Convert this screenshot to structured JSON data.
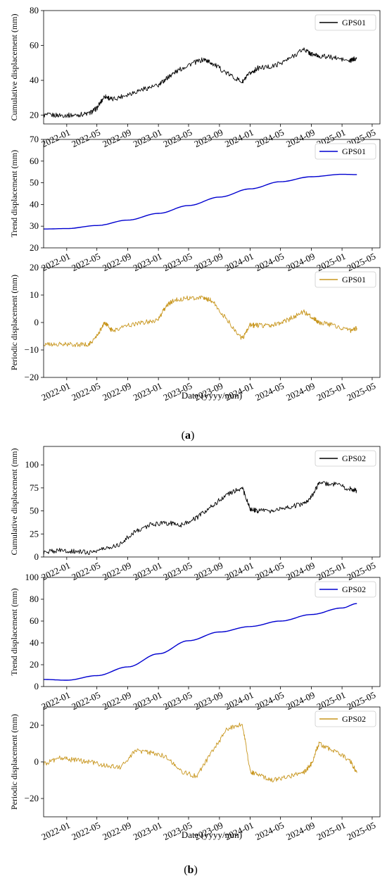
{
  "figure": {
    "captions": [
      "(a)",
      "(b)"
    ],
    "caption_letters": [
      "a",
      "b"
    ]
  },
  "chart_data": [
    {
      "type": "line",
      "ylabel": "Cumulative displacement (mm)",
      "ylim": [
        15,
        80
      ],
      "yticks": [
        20,
        40,
        60,
        80
      ],
      "x_tick_labels": [
        "2022-01",
        "2022-05",
        "2022-09",
        "2023-01",
        "2023-05",
        "2023-09",
        "2024-01",
        "2024-05",
        "2024-09",
        "2025-01",
        "2025-05"
      ],
      "legend": "top-right",
      "color": "#000000",
      "series": [
        {
          "name": "GPS01",
          "x": [
            "2021-10",
            "2021-12",
            "2022-02",
            "2022-04",
            "2022-05",
            "2022-06",
            "2022-07",
            "2022-09",
            "2022-11",
            "2023-01",
            "2023-02",
            "2023-03",
            "2023-05",
            "2023-07",
            "2023-08",
            "2023-10",
            "2023-12",
            "2024-01",
            "2024-02",
            "2024-04",
            "2024-06",
            "2024-08",
            "2024-09",
            "2024-10",
            "2024-12",
            "2025-02",
            "2025-03"
          ],
          "y": [
            20,
            20,
            20,
            21,
            24,
            31,
            29,
            32,
            35,
            37,
            41,
            44,
            49,
            52,
            50,
            44,
            39,
            44,
            47,
            48,
            52,
            58,
            55,
            54,
            53,
            51,
            53
          ]
        }
      ]
    },
    {
      "type": "line",
      "ylabel": "Trend displacement (mm)",
      "ylim": [
        20,
        70
      ],
      "yticks": [
        20,
        30,
        40,
        50,
        60,
        70
      ],
      "x_tick_labels": [
        "2022-01",
        "2022-05",
        "2022-09",
        "2023-01",
        "2023-05",
        "2023-09",
        "2024-01",
        "2024-05",
        "2024-09",
        "2025-01",
        "2025-05"
      ],
      "legend": "top-right",
      "color": "#0000d0",
      "series": [
        {
          "name": "GPS01",
          "x": [
            "2021-10",
            "2022-01",
            "2022-05",
            "2022-09",
            "2023-01",
            "2023-05",
            "2023-09",
            "2024-01",
            "2024-05",
            "2024-09",
            "2025-01",
            "2025-03"
          ],
          "y": [
            28.7,
            28.9,
            30.3,
            32.8,
            35.9,
            39.5,
            43.4,
            47.2,
            50.5,
            52.8,
            53.9,
            53.8
          ]
        }
      ]
    },
    {
      "type": "line",
      "ylabel": "Periodic displacement (mm)",
      "ylim": [
        -20,
        20
      ],
      "yticks": [
        -20,
        -10,
        0,
        10,
        20
      ],
      "x_tick_labels": [
        "2022-01",
        "2022-05",
        "2022-09",
        "2023-01",
        "2023-05",
        "2023-09",
        "2024-01",
        "2024-05",
        "2024-09",
        "2025-01",
        "2025-05"
      ],
      "xlabel": "Date (yyyy/mm)",
      "legend": "top-right",
      "color": "#c8961e",
      "series": [
        {
          "name": "GPS01",
          "x": [
            "2021-10",
            "2021-12",
            "2022-02",
            "2022-04",
            "2022-05",
            "2022-06",
            "2022-07",
            "2022-09",
            "2022-11",
            "2023-01",
            "2023-02",
            "2023-03",
            "2023-05",
            "2023-07",
            "2023-08",
            "2023-10",
            "2023-12",
            "2024-01",
            "2024-02",
            "2024-04",
            "2024-06",
            "2024-08",
            "2024-09",
            "2024-10",
            "2024-12",
            "2025-02",
            "2025-03"
          ],
          "y": [
            -8,
            -8,
            -8,
            -8,
            -5,
            0,
            -3,
            -1,
            0,
            1,
            6,
            8,
            9,
            9,
            8,
            1,
            -6,
            -1,
            -1,
            -1,
            1,
            4,
            2,
            0,
            -1,
            -3,
            -2
          ]
        }
      ]
    },
    {
      "type": "line",
      "ylabel": "Cumulative displacement (mm)",
      "ylim": [
        0,
        120
      ],
      "yticks": [
        0,
        25,
        50,
        75,
        100
      ],
      "x_tick_labels": [
        "2022-01",
        "2022-05",
        "2022-09",
        "2023-01",
        "2023-05",
        "2023-09",
        "2024-01",
        "2024-05",
        "2024-09",
        "2025-01",
        "2025-05"
      ],
      "legend": "top-right",
      "color": "#000000",
      "series": [
        {
          "name": "GPS02",
          "x": [
            "2021-10",
            "2021-12",
            "2022-02",
            "2022-04",
            "2022-06",
            "2022-08",
            "2022-10",
            "2022-12",
            "2023-02",
            "2023-04",
            "2023-06",
            "2023-08",
            "2023-10",
            "2023-12",
            "2024-01",
            "2024-02",
            "2024-04",
            "2024-06",
            "2024-08",
            "2024-09",
            "2024-10",
            "2024-12",
            "2025-02",
            "2025-03"
          ],
          "y": [
            5,
            7,
            6,
            5,
            9,
            14,
            28,
            35,
            37,
            35,
            42,
            55,
            68,
            75,
            52,
            50,
            50,
            54,
            58,
            65,
            80,
            79,
            74,
            72
          ]
        }
      ]
    },
    {
      "type": "line",
      "ylabel": "Trend displacement (mm)",
      "ylim": [
        0,
        100
      ],
      "yticks": [
        0,
        20,
        40,
        60,
        80,
        100
      ],
      "x_tick_labels": [
        "2022-01",
        "2022-05",
        "2022-09",
        "2023-01",
        "2023-05",
        "2023-09",
        "2024-01",
        "2024-05",
        "2024-09",
        "2025-01",
        "2025-05"
      ],
      "legend": "top-right",
      "color": "#0000d0",
      "series": [
        {
          "name": "GPS02",
          "x": [
            "2021-10",
            "2022-01",
            "2022-05",
            "2022-09",
            "2023-01",
            "2023-05",
            "2023-09",
            "2024-01",
            "2024-05",
            "2024-09",
            "2025-01",
            "2025-03"
          ],
          "y": [
            6.5,
            5.8,
            10,
            18,
            30,
            42,
            50,
            55,
            60,
            66,
            72,
            76
          ]
        }
      ]
    },
    {
      "type": "line",
      "ylabel": "Periodic displacement (mm)",
      "ylim": [
        -30,
        30
      ],
      "yticks": [
        -20,
        0,
        20
      ],
      "x_tick_labels": [
        "2022-01",
        "2022-05",
        "2022-09",
        "2023-01",
        "2023-05",
        "2023-09",
        "2024-01",
        "2024-05",
        "2024-09",
        "2025-01",
        "2025-05"
      ],
      "xlabel": "Date (yyyy/mm)",
      "legend": "top-right",
      "color": "#c8961e",
      "series": [
        {
          "name": "GPS02",
          "x": [
            "2021-10",
            "2021-12",
            "2022-02",
            "2022-04",
            "2022-06",
            "2022-08",
            "2022-10",
            "2022-12",
            "2023-02",
            "2023-04",
            "2023-06",
            "2023-08",
            "2023-10",
            "2023-12",
            "2024-01",
            "2024-02",
            "2024-04",
            "2024-06",
            "2024-08",
            "2024-09",
            "2024-10",
            "2024-12",
            "2025-02",
            "2025-03"
          ],
          "y": [
            -1,
            2,
            1,
            0,
            -2,
            -3,
            6,
            5,
            3,
            -5,
            -8,
            5,
            18,
            21,
            -5,
            -7,
            -10,
            -8,
            -6,
            -1,
            10,
            6,
            1,
            -6
          ]
        }
      ]
    }
  ]
}
